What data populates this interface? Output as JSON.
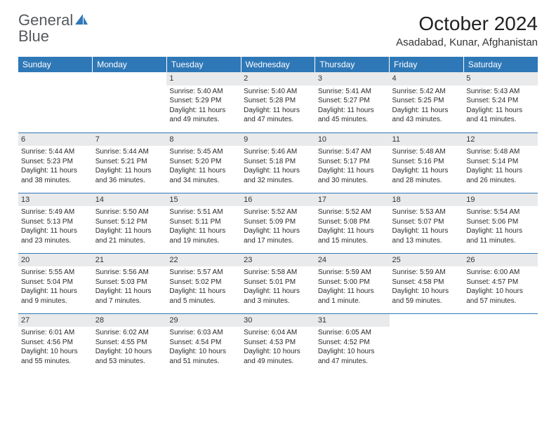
{
  "logo": {
    "word1": "General",
    "word2": "Blue"
  },
  "title": "October 2024",
  "subtitle": "Asadabad, Kunar, Afghanistan",
  "colors": {
    "headerBg": "#2f78b7",
    "headerText": "#ffffff",
    "dayBarBg": "#e9eaeb",
    "gridLine": "#2f78b7",
    "bodyText": "#222222",
    "logoGray": "#555a5e",
    "logoBlue": "#2f78b7"
  },
  "weekdays": [
    "Sunday",
    "Monday",
    "Tuesday",
    "Wednesday",
    "Thursday",
    "Friday",
    "Saturday"
  ],
  "weeks": [
    [
      {
        "day": "",
        "lines": []
      },
      {
        "day": "",
        "lines": []
      },
      {
        "day": "1",
        "lines": [
          "Sunrise: 5:40 AM",
          "Sunset: 5:29 PM",
          "Daylight: 11 hours",
          "and 49 minutes."
        ]
      },
      {
        "day": "2",
        "lines": [
          "Sunrise: 5:40 AM",
          "Sunset: 5:28 PM",
          "Daylight: 11 hours",
          "and 47 minutes."
        ]
      },
      {
        "day": "3",
        "lines": [
          "Sunrise: 5:41 AM",
          "Sunset: 5:27 PM",
          "Daylight: 11 hours",
          "and 45 minutes."
        ]
      },
      {
        "day": "4",
        "lines": [
          "Sunrise: 5:42 AM",
          "Sunset: 5:25 PM",
          "Daylight: 11 hours",
          "and 43 minutes."
        ]
      },
      {
        "day": "5",
        "lines": [
          "Sunrise: 5:43 AM",
          "Sunset: 5:24 PM",
          "Daylight: 11 hours",
          "and 41 minutes."
        ]
      }
    ],
    [
      {
        "day": "6",
        "lines": [
          "Sunrise: 5:44 AM",
          "Sunset: 5:23 PM",
          "Daylight: 11 hours",
          "and 38 minutes."
        ]
      },
      {
        "day": "7",
        "lines": [
          "Sunrise: 5:44 AM",
          "Sunset: 5:21 PM",
          "Daylight: 11 hours",
          "and 36 minutes."
        ]
      },
      {
        "day": "8",
        "lines": [
          "Sunrise: 5:45 AM",
          "Sunset: 5:20 PM",
          "Daylight: 11 hours",
          "and 34 minutes."
        ]
      },
      {
        "day": "9",
        "lines": [
          "Sunrise: 5:46 AM",
          "Sunset: 5:18 PM",
          "Daylight: 11 hours",
          "and 32 minutes."
        ]
      },
      {
        "day": "10",
        "lines": [
          "Sunrise: 5:47 AM",
          "Sunset: 5:17 PM",
          "Daylight: 11 hours",
          "and 30 minutes."
        ]
      },
      {
        "day": "11",
        "lines": [
          "Sunrise: 5:48 AM",
          "Sunset: 5:16 PM",
          "Daylight: 11 hours",
          "and 28 minutes."
        ]
      },
      {
        "day": "12",
        "lines": [
          "Sunrise: 5:48 AM",
          "Sunset: 5:14 PM",
          "Daylight: 11 hours",
          "and 26 minutes."
        ]
      }
    ],
    [
      {
        "day": "13",
        "lines": [
          "Sunrise: 5:49 AM",
          "Sunset: 5:13 PM",
          "Daylight: 11 hours",
          "and 23 minutes."
        ]
      },
      {
        "day": "14",
        "lines": [
          "Sunrise: 5:50 AM",
          "Sunset: 5:12 PM",
          "Daylight: 11 hours",
          "and 21 minutes."
        ]
      },
      {
        "day": "15",
        "lines": [
          "Sunrise: 5:51 AM",
          "Sunset: 5:11 PM",
          "Daylight: 11 hours",
          "and 19 minutes."
        ]
      },
      {
        "day": "16",
        "lines": [
          "Sunrise: 5:52 AM",
          "Sunset: 5:09 PM",
          "Daylight: 11 hours",
          "and 17 minutes."
        ]
      },
      {
        "day": "17",
        "lines": [
          "Sunrise: 5:52 AM",
          "Sunset: 5:08 PM",
          "Daylight: 11 hours",
          "and 15 minutes."
        ]
      },
      {
        "day": "18",
        "lines": [
          "Sunrise: 5:53 AM",
          "Sunset: 5:07 PM",
          "Daylight: 11 hours",
          "and 13 minutes."
        ]
      },
      {
        "day": "19",
        "lines": [
          "Sunrise: 5:54 AM",
          "Sunset: 5:06 PM",
          "Daylight: 11 hours",
          "and 11 minutes."
        ]
      }
    ],
    [
      {
        "day": "20",
        "lines": [
          "Sunrise: 5:55 AM",
          "Sunset: 5:04 PM",
          "Daylight: 11 hours",
          "and 9 minutes."
        ]
      },
      {
        "day": "21",
        "lines": [
          "Sunrise: 5:56 AM",
          "Sunset: 5:03 PM",
          "Daylight: 11 hours",
          "and 7 minutes."
        ]
      },
      {
        "day": "22",
        "lines": [
          "Sunrise: 5:57 AM",
          "Sunset: 5:02 PM",
          "Daylight: 11 hours",
          "and 5 minutes."
        ]
      },
      {
        "day": "23",
        "lines": [
          "Sunrise: 5:58 AM",
          "Sunset: 5:01 PM",
          "Daylight: 11 hours",
          "and 3 minutes."
        ]
      },
      {
        "day": "24",
        "lines": [
          "Sunrise: 5:59 AM",
          "Sunset: 5:00 PM",
          "Daylight: 11 hours",
          "and 1 minute."
        ]
      },
      {
        "day": "25",
        "lines": [
          "Sunrise: 5:59 AM",
          "Sunset: 4:58 PM",
          "Daylight: 10 hours",
          "and 59 minutes."
        ]
      },
      {
        "day": "26",
        "lines": [
          "Sunrise: 6:00 AM",
          "Sunset: 4:57 PM",
          "Daylight: 10 hours",
          "and 57 minutes."
        ]
      }
    ],
    [
      {
        "day": "27",
        "lines": [
          "Sunrise: 6:01 AM",
          "Sunset: 4:56 PM",
          "Daylight: 10 hours",
          "and 55 minutes."
        ]
      },
      {
        "day": "28",
        "lines": [
          "Sunrise: 6:02 AM",
          "Sunset: 4:55 PM",
          "Daylight: 10 hours",
          "and 53 minutes."
        ]
      },
      {
        "day": "29",
        "lines": [
          "Sunrise: 6:03 AM",
          "Sunset: 4:54 PM",
          "Daylight: 10 hours",
          "and 51 minutes."
        ]
      },
      {
        "day": "30",
        "lines": [
          "Sunrise: 6:04 AM",
          "Sunset: 4:53 PM",
          "Daylight: 10 hours",
          "and 49 minutes."
        ]
      },
      {
        "day": "31",
        "lines": [
          "Sunrise: 6:05 AM",
          "Sunset: 4:52 PM",
          "Daylight: 10 hours",
          "and 47 minutes."
        ]
      },
      {
        "day": "",
        "lines": []
      },
      {
        "day": "",
        "lines": []
      }
    ]
  ]
}
